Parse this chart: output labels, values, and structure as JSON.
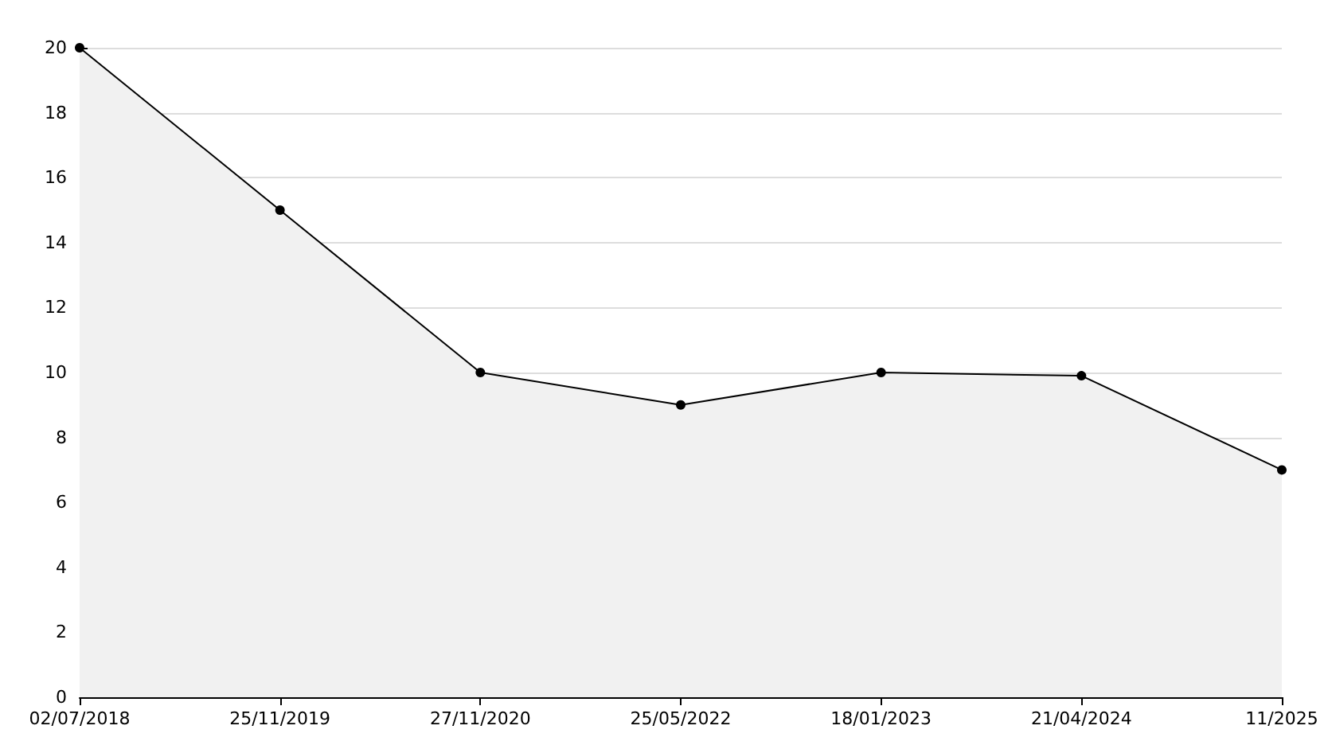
{
  "chart_data": {
    "type": "area",
    "categories": [
      "02/07/2018",
      "25/11/2019",
      "27/11/2020",
      "25/05/2022",
      "18/01/2023",
      "21/04/2024",
      "11/2025"
    ],
    "series": [
      {
        "color": "#000000",
        "values": [
          20,
          15,
          10,
          9,
          10,
          9.9,
          7
        ]
      }
    ],
    "ylim": [
      0,
      20
    ],
    "yticks": [
      0,
      2,
      4,
      6,
      8,
      10,
      12,
      14,
      16,
      18,
      20
    ],
    "grid": "y",
    "marker": "circle",
    "line_style": "solid"
  }
}
